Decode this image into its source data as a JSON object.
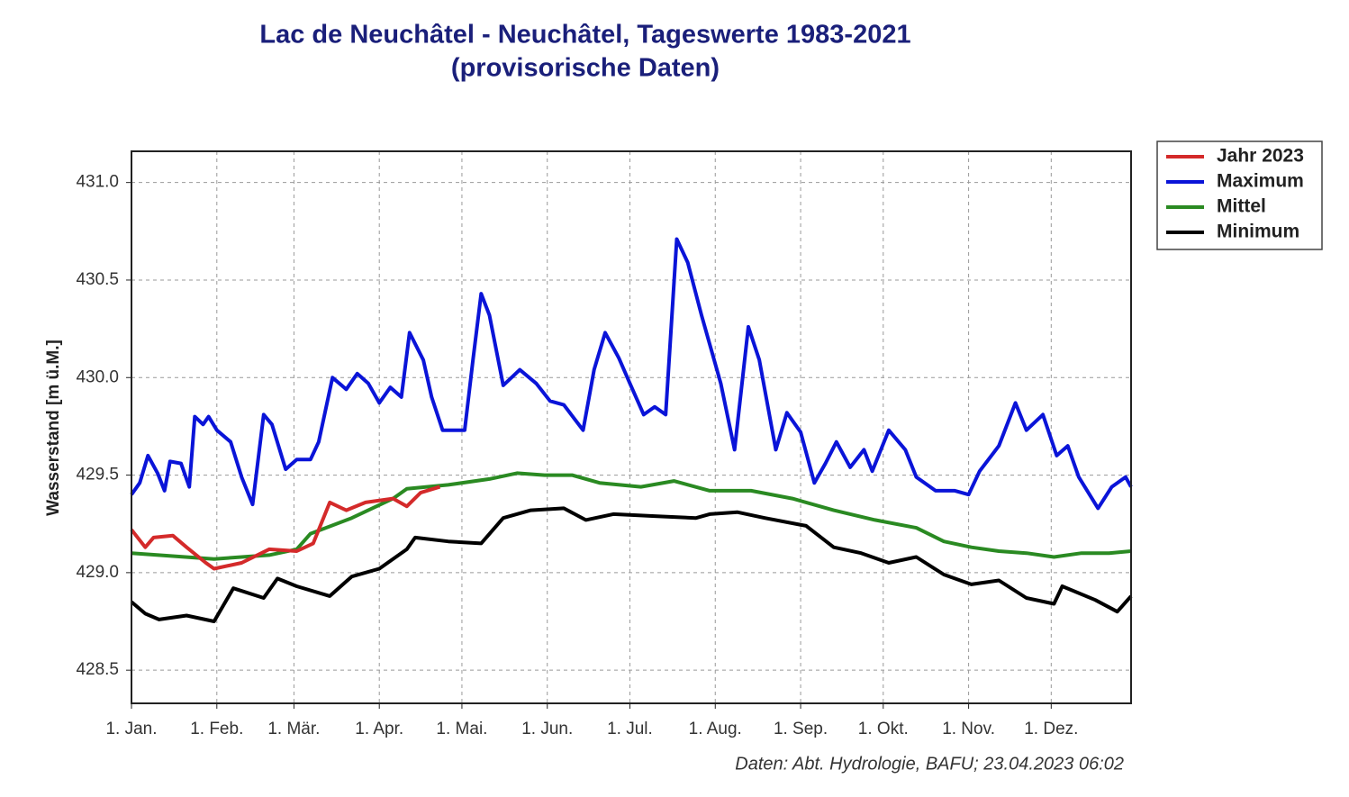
{
  "chart_data": {
    "type": "line",
    "title": "Lac de Neuchâtel - Neuchâtel, Tageswerte 1983-2021",
    "subtitle": "(provisorische Daten)",
    "y_label": "Wasserstand [m ü.M.]",
    "source": "Daten: Abt. Hydrologie, BAFU; 23.04.2023 06:02",
    "xlim": [
      0,
      363
    ],
    "xticks": [
      {
        "value": 0,
        "label": "1. Jan."
      },
      {
        "value": 31,
        "label": "1. Feb."
      },
      {
        "value": 59,
        "label": "1. Mär."
      },
      {
        "value": 90,
        "label": "1. Apr."
      },
      {
        "value": 120,
        "label": "1. Mai."
      },
      {
        "value": 151,
        "label": "1. Jun."
      },
      {
        "value": 181,
        "label": "1. Jul."
      },
      {
        "value": 212,
        "label": "1. Aug."
      },
      {
        "value": 243,
        "label": "1. Sep."
      },
      {
        "value": 273,
        "label": "1. Okt."
      },
      {
        "value": 304,
        "label": "1. Nov."
      },
      {
        "value": 334,
        "label": "1. Dez."
      }
    ],
    "ylim": [
      428.33,
      431.16
    ],
    "yticks": [
      428.5,
      {
        "value": 429.0,
        "label": "429.0"
      },
      429.5,
      {
        "value": 430.0,
        "label": "430.0"
      },
      430.5,
      {
        "value": 431.0,
        "label": "431.0"
      }
    ],
    "grid": true,
    "legend": "top-right",
    "series": [
      {
        "name": "Jahr 2023",
        "color": "#d42a2a",
        "x": [
          0,
          5,
          8,
          15,
          20,
          27,
          30,
          40,
          50,
          60,
          66,
          72,
          78,
          85,
          95,
          100,
          105,
          112
        ],
        "values": [
          429.22,
          429.13,
          429.18,
          429.19,
          429.13,
          429.05,
          429.02,
          429.05,
          429.12,
          429.11,
          429.15,
          429.36,
          429.32,
          429.36,
          429.38,
          429.34,
          429.41,
          429.44
        ]
      },
      {
        "name": "Maximum",
        "color": "#0a14d8",
        "x": [
          0,
          3,
          6,
          9.5,
          12,
          14,
          18,
          21,
          23,
          26,
          28,
          31,
          36,
          40,
          44,
          48,
          51,
          56,
          60,
          65,
          68,
          73,
          78,
          82,
          86,
          90,
          94,
          98,
          101,
          106,
          109,
          113,
          121,
          124,
          127,
          130,
          135,
          141,
          147,
          152,
          157,
          164,
          168,
          172,
          177,
          181,
          186,
          190,
          194,
          198,
          202,
          207,
          214,
          219,
          224,
          228,
          234,
          238,
          243,
          248,
          252,
          256,
          261,
          266,
          269,
          275,
          281,
          285,
          292,
          299,
          304,
          308,
          315,
          321,
          325,
          331,
          336,
          340,
          344,
          351,
          356,
          361,
          363
        ],
        "values": [
          429.4,
          429.46,
          429.6,
          429.51,
          429.42,
          429.57,
          429.56,
          429.44,
          429.8,
          429.76,
          429.8,
          429.73,
          429.67,
          429.49,
          429.35,
          429.81,
          429.76,
          429.53,
          429.58,
          429.58,
          429.67,
          430.0,
          429.94,
          430.02,
          429.97,
          429.87,
          429.95,
          429.9,
          430.23,
          430.09,
          429.9,
          429.73,
          429.73,
          430.09,
          430.43,
          430.32,
          429.96,
          430.04,
          429.97,
          429.88,
          429.86,
          429.73,
          430.04,
          430.23,
          430.1,
          429.97,
          429.81,
          429.85,
          429.81,
          430.71,
          430.59,
          430.32,
          429.97,
          429.63,
          430.26,
          430.09,
          429.63,
          429.82,
          429.72,
          429.46,
          429.56,
          429.67,
          429.54,
          429.63,
          429.52,
          429.73,
          429.63,
          429.49,
          429.42,
          429.42,
          429.4,
          429.52,
          429.65,
          429.87,
          429.73,
          429.81,
          429.6,
          429.65,
          429.49,
          429.33,
          429.44,
          429.49,
          429.44
        ]
      },
      {
        "name": "Mittel",
        "color": "#2a8a22",
        "x": [
          0,
          30,
          50,
          60,
          65,
          80,
          95,
          100,
          115,
          130,
          140,
          150,
          160,
          170,
          185,
          197,
          210,
          225,
          240,
          255,
          270,
          285,
          295,
          305,
          315,
          325,
          335,
          345,
          355,
          363
        ],
        "values": [
          429.1,
          429.07,
          429.09,
          429.12,
          429.2,
          429.28,
          429.38,
          429.43,
          429.45,
          429.48,
          429.51,
          429.5,
          429.5,
          429.46,
          429.44,
          429.47,
          429.42,
          429.42,
          429.38,
          429.32,
          429.27,
          429.23,
          429.16,
          429.13,
          429.11,
          429.1,
          429.08,
          429.1,
          429.1,
          429.11
        ]
      },
      {
        "name": "Minimum",
        "color": "#000000",
        "x": [
          0,
          5,
          10,
          20,
          30,
          37,
          48,
          53,
          60,
          72,
          80,
          90,
          100,
          103,
          115,
          127,
          135,
          145,
          157,
          165,
          175,
          190,
          205,
          210,
          220,
          230,
          245,
          255,
          265,
          275,
          285,
          295,
          305,
          315,
          325,
          335,
          338,
          350,
          358,
          363
        ],
        "values": [
          428.85,
          428.79,
          428.76,
          428.78,
          428.75,
          428.92,
          428.87,
          428.97,
          428.93,
          428.88,
          428.98,
          429.02,
          429.12,
          429.18,
          429.16,
          429.15,
          429.28,
          429.32,
          429.33,
          429.27,
          429.3,
          429.29,
          429.28,
          429.3,
          429.31,
          429.28,
          429.24,
          429.13,
          429.1,
          429.05,
          429.08,
          428.99,
          428.94,
          428.96,
          428.87,
          428.84,
          428.93,
          428.86,
          428.8,
          428.88
        ]
      }
    ]
  }
}
